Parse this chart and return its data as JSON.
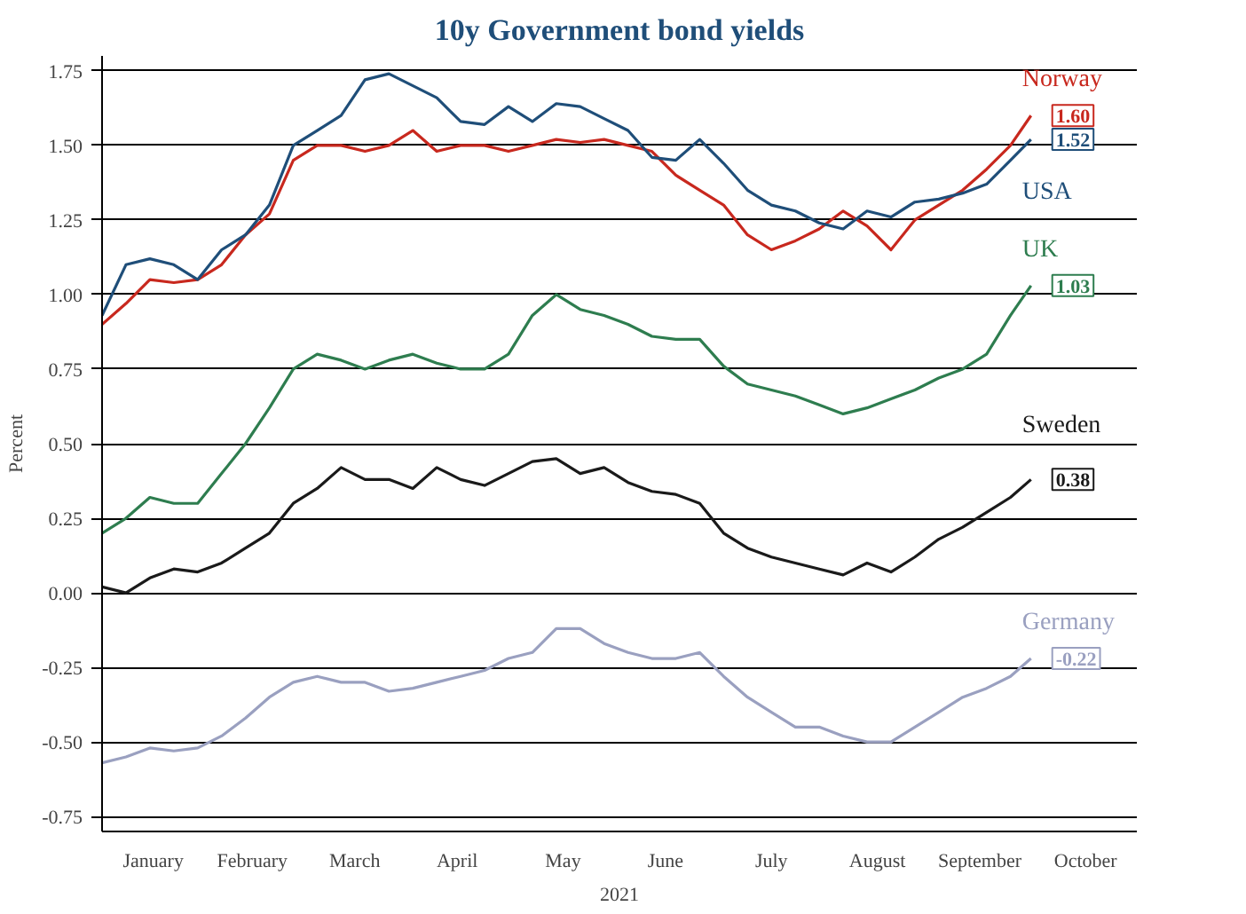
{
  "chart_data": {
    "type": "line",
    "title": "10y Government bond yields",
    "ylabel": "Percent",
    "xlabel": "2021",
    "x": [
      "2021-01-01",
      "2021-01-08",
      "2021-01-15",
      "2021-01-22",
      "2021-01-29",
      "2021-02-05",
      "2021-02-12",
      "2021-02-19",
      "2021-02-26",
      "2021-03-05",
      "2021-03-12",
      "2021-03-19",
      "2021-03-26",
      "2021-04-02",
      "2021-04-09",
      "2021-04-16",
      "2021-04-23",
      "2021-04-30",
      "2021-05-07",
      "2021-05-14",
      "2021-05-21",
      "2021-05-28",
      "2021-06-04",
      "2021-06-11",
      "2021-06-18",
      "2021-06-25",
      "2021-07-02",
      "2021-07-09",
      "2021-07-16",
      "2021-07-23",
      "2021-07-30",
      "2021-08-06",
      "2021-08-13",
      "2021-08-20",
      "2021-08-27",
      "2021-09-03",
      "2021-09-10",
      "2021-09-17",
      "2021-09-24",
      "2021-09-30"
    ],
    "series": [
      {
        "name": "Norway",
        "color": "#c8281e",
        "values": [
          0.9,
          0.97,
          1.05,
          1.04,
          1.05,
          1.1,
          1.2,
          1.27,
          1.45,
          1.5,
          1.5,
          1.48,
          1.5,
          1.55,
          1.48,
          1.5,
          1.5,
          1.48,
          1.5,
          1.52,
          1.51,
          1.52,
          1.5,
          1.48,
          1.4,
          1.35,
          1.3,
          1.2,
          1.15,
          1.18,
          1.22,
          1.28,
          1.23,
          1.15,
          1.25,
          1.3,
          1.35,
          1.42,
          1.5,
          1.6
        ],
        "value_labels": [
          null,
          null,
          null,
          null,
          null,
          null,
          null,
          null,
          null,
          null,
          null,
          null,
          null,
          null,
          null,
          null,
          null,
          null,
          null,
          null,
          null,
          null,
          null,
          null,
          null,
          null,
          null,
          null,
          null,
          null,
          null,
          null,
          null,
          null,
          null,
          null,
          null,
          null,
          null,
          "1.60"
        ]
      },
      {
        "name": "USA",
        "color": "#1f4e79",
        "values": [
          0.93,
          1.1,
          1.12,
          1.1,
          1.05,
          1.15,
          1.2,
          1.3,
          1.5,
          1.55,
          1.6,
          1.72,
          1.74,
          1.7,
          1.66,
          1.58,
          1.57,
          1.63,
          1.58,
          1.64,
          1.63,
          1.59,
          1.55,
          1.46,
          1.45,
          1.52,
          1.44,
          1.35,
          1.3,
          1.28,
          1.24,
          1.22,
          1.28,
          1.26,
          1.31,
          1.32,
          1.34,
          1.37,
          1.45,
          1.52
        ],
        "value_labels": [
          null,
          null,
          null,
          null,
          null,
          null,
          null,
          null,
          null,
          null,
          null,
          null,
          null,
          null,
          null,
          null,
          null,
          null,
          null,
          null,
          null,
          null,
          null,
          null,
          null,
          null,
          null,
          null,
          null,
          null,
          null,
          null,
          null,
          null,
          null,
          null,
          null,
          null,
          null,
          "1.52"
        ]
      },
      {
        "name": "UK",
        "color": "#2e7d4f",
        "values": [
          0.2,
          0.25,
          0.32,
          0.3,
          0.3,
          0.4,
          0.5,
          0.62,
          0.75,
          0.8,
          0.78,
          0.75,
          0.78,
          0.8,
          0.77,
          0.75,
          0.75,
          0.8,
          0.93,
          1.0,
          0.95,
          0.93,
          0.9,
          0.86,
          0.85,
          0.85,
          0.76,
          0.7,
          0.68,
          0.66,
          0.63,
          0.6,
          0.62,
          0.65,
          0.68,
          0.72,
          0.75,
          0.8,
          0.93,
          1.03
        ],
        "value_labels": [
          null,
          null,
          null,
          null,
          null,
          null,
          null,
          null,
          null,
          null,
          null,
          null,
          null,
          null,
          null,
          null,
          null,
          null,
          null,
          null,
          null,
          null,
          null,
          null,
          null,
          null,
          null,
          null,
          null,
          null,
          null,
          null,
          null,
          null,
          null,
          null,
          null,
          null,
          null,
          "1.03"
        ]
      },
      {
        "name": "Sweden",
        "color": "#1a1a1a",
        "values": [
          0.02,
          0.0,
          0.05,
          0.08,
          0.07,
          0.1,
          0.15,
          0.2,
          0.3,
          0.35,
          0.42,
          0.38,
          0.38,
          0.35,
          0.42,
          0.38,
          0.36,
          0.4,
          0.44,
          0.45,
          0.4,
          0.42,
          0.37,
          0.34,
          0.33,
          0.3,
          0.2,
          0.15,
          0.12,
          0.1,
          0.08,
          0.06,
          0.1,
          0.07,
          0.12,
          0.18,
          0.22,
          0.27,
          0.32,
          0.38
        ],
        "value_labels": [
          null,
          null,
          null,
          null,
          null,
          null,
          null,
          null,
          null,
          null,
          null,
          null,
          null,
          null,
          null,
          null,
          null,
          null,
          null,
          null,
          null,
          null,
          null,
          null,
          null,
          null,
          null,
          null,
          null,
          null,
          null,
          null,
          null,
          null,
          null,
          null,
          null,
          null,
          null,
          "0.38"
        ]
      },
      {
        "name": "Germany",
        "color": "#9aa0c0",
        "values": [
          -0.57,
          -0.55,
          -0.52,
          -0.53,
          -0.52,
          -0.48,
          -0.42,
          -0.35,
          -0.3,
          -0.28,
          -0.3,
          -0.3,
          -0.33,
          -0.32,
          -0.3,
          -0.28,
          -0.26,
          -0.22,
          -0.2,
          -0.12,
          -0.12,
          -0.17,
          -0.2,
          -0.22,
          -0.22,
          -0.2,
          -0.28,
          -0.35,
          -0.4,
          -0.45,
          -0.45,
          -0.48,
          -0.5,
          -0.5,
          -0.45,
          -0.4,
          -0.35,
          -0.32,
          -0.28,
          -0.22
        ],
        "value_labels": [
          null,
          null,
          null,
          null,
          null,
          null,
          null,
          null,
          null,
          null,
          null,
          null,
          null,
          null,
          null,
          null,
          null,
          null,
          null,
          null,
          null,
          null,
          null,
          null,
          null,
          null,
          null,
          null,
          null,
          null,
          null,
          null,
          null,
          null,
          null,
          null,
          null,
          null,
          null,
          "-0.22"
        ]
      }
    ],
    "xlim": [
      "2021-01-01",
      "2021-10-31"
    ],
    "xticks": [
      {
        "value": "2021-01-16",
        "label": "January"
      },
      {
        "value": "2021-02-14",
        "label": "February"
      },
      {
        "value": "2021-03-16",
        "label": "March"
      },
      {
        "value": "2021-04-15",
        "label": "April"
      },
      {
        "value": "2021-05-16",
        "label": "May"
      },
      {
        "value": "2021-06-15",
        "label": "June"
      },
      {
        "value": "2021-07-16",
        "label": "July"
      },
      {
        "value": "2021-08-16",
        "label": "August"
      },
      {
        "value": "2021-09-15",
        "label": "September"
      },
      {
        "value": "2021-10-16",
        "label": "October"
      }
    ],
    "ylim": [
      -0.8,
      1.8
    ],
    "yticks": [
      {
        "value": -0.75,
        "label": "-0.75"
      },
      {
        "value": -0.5,
        "label": "-0.50"
      },
      {
        "value": -0.25,
        "label": "-0.25"
      },
      {
        "value": 0,
        "label": "0.00"
      },
      {
        "value": 0.25,
        "label": "0.25"
      },
      {
        "value": 0.5,
        "label": "0.50"
      },
      {
        "value": 0.75,
        "label": "0.75"
      },
      {
        "value": 1,
        "label": "1.00"
      },
      {
        "value": 1.25,
        "label": "1.25"
      },
      {
        "value": 1.5,
        "label": "1.50"
      },
      {
        "value": 1.75,
        "label": "1.75"
      }
    ],
    "grid": "y",
    "marker": "none",
    "line_style": "solid"
  }
}
